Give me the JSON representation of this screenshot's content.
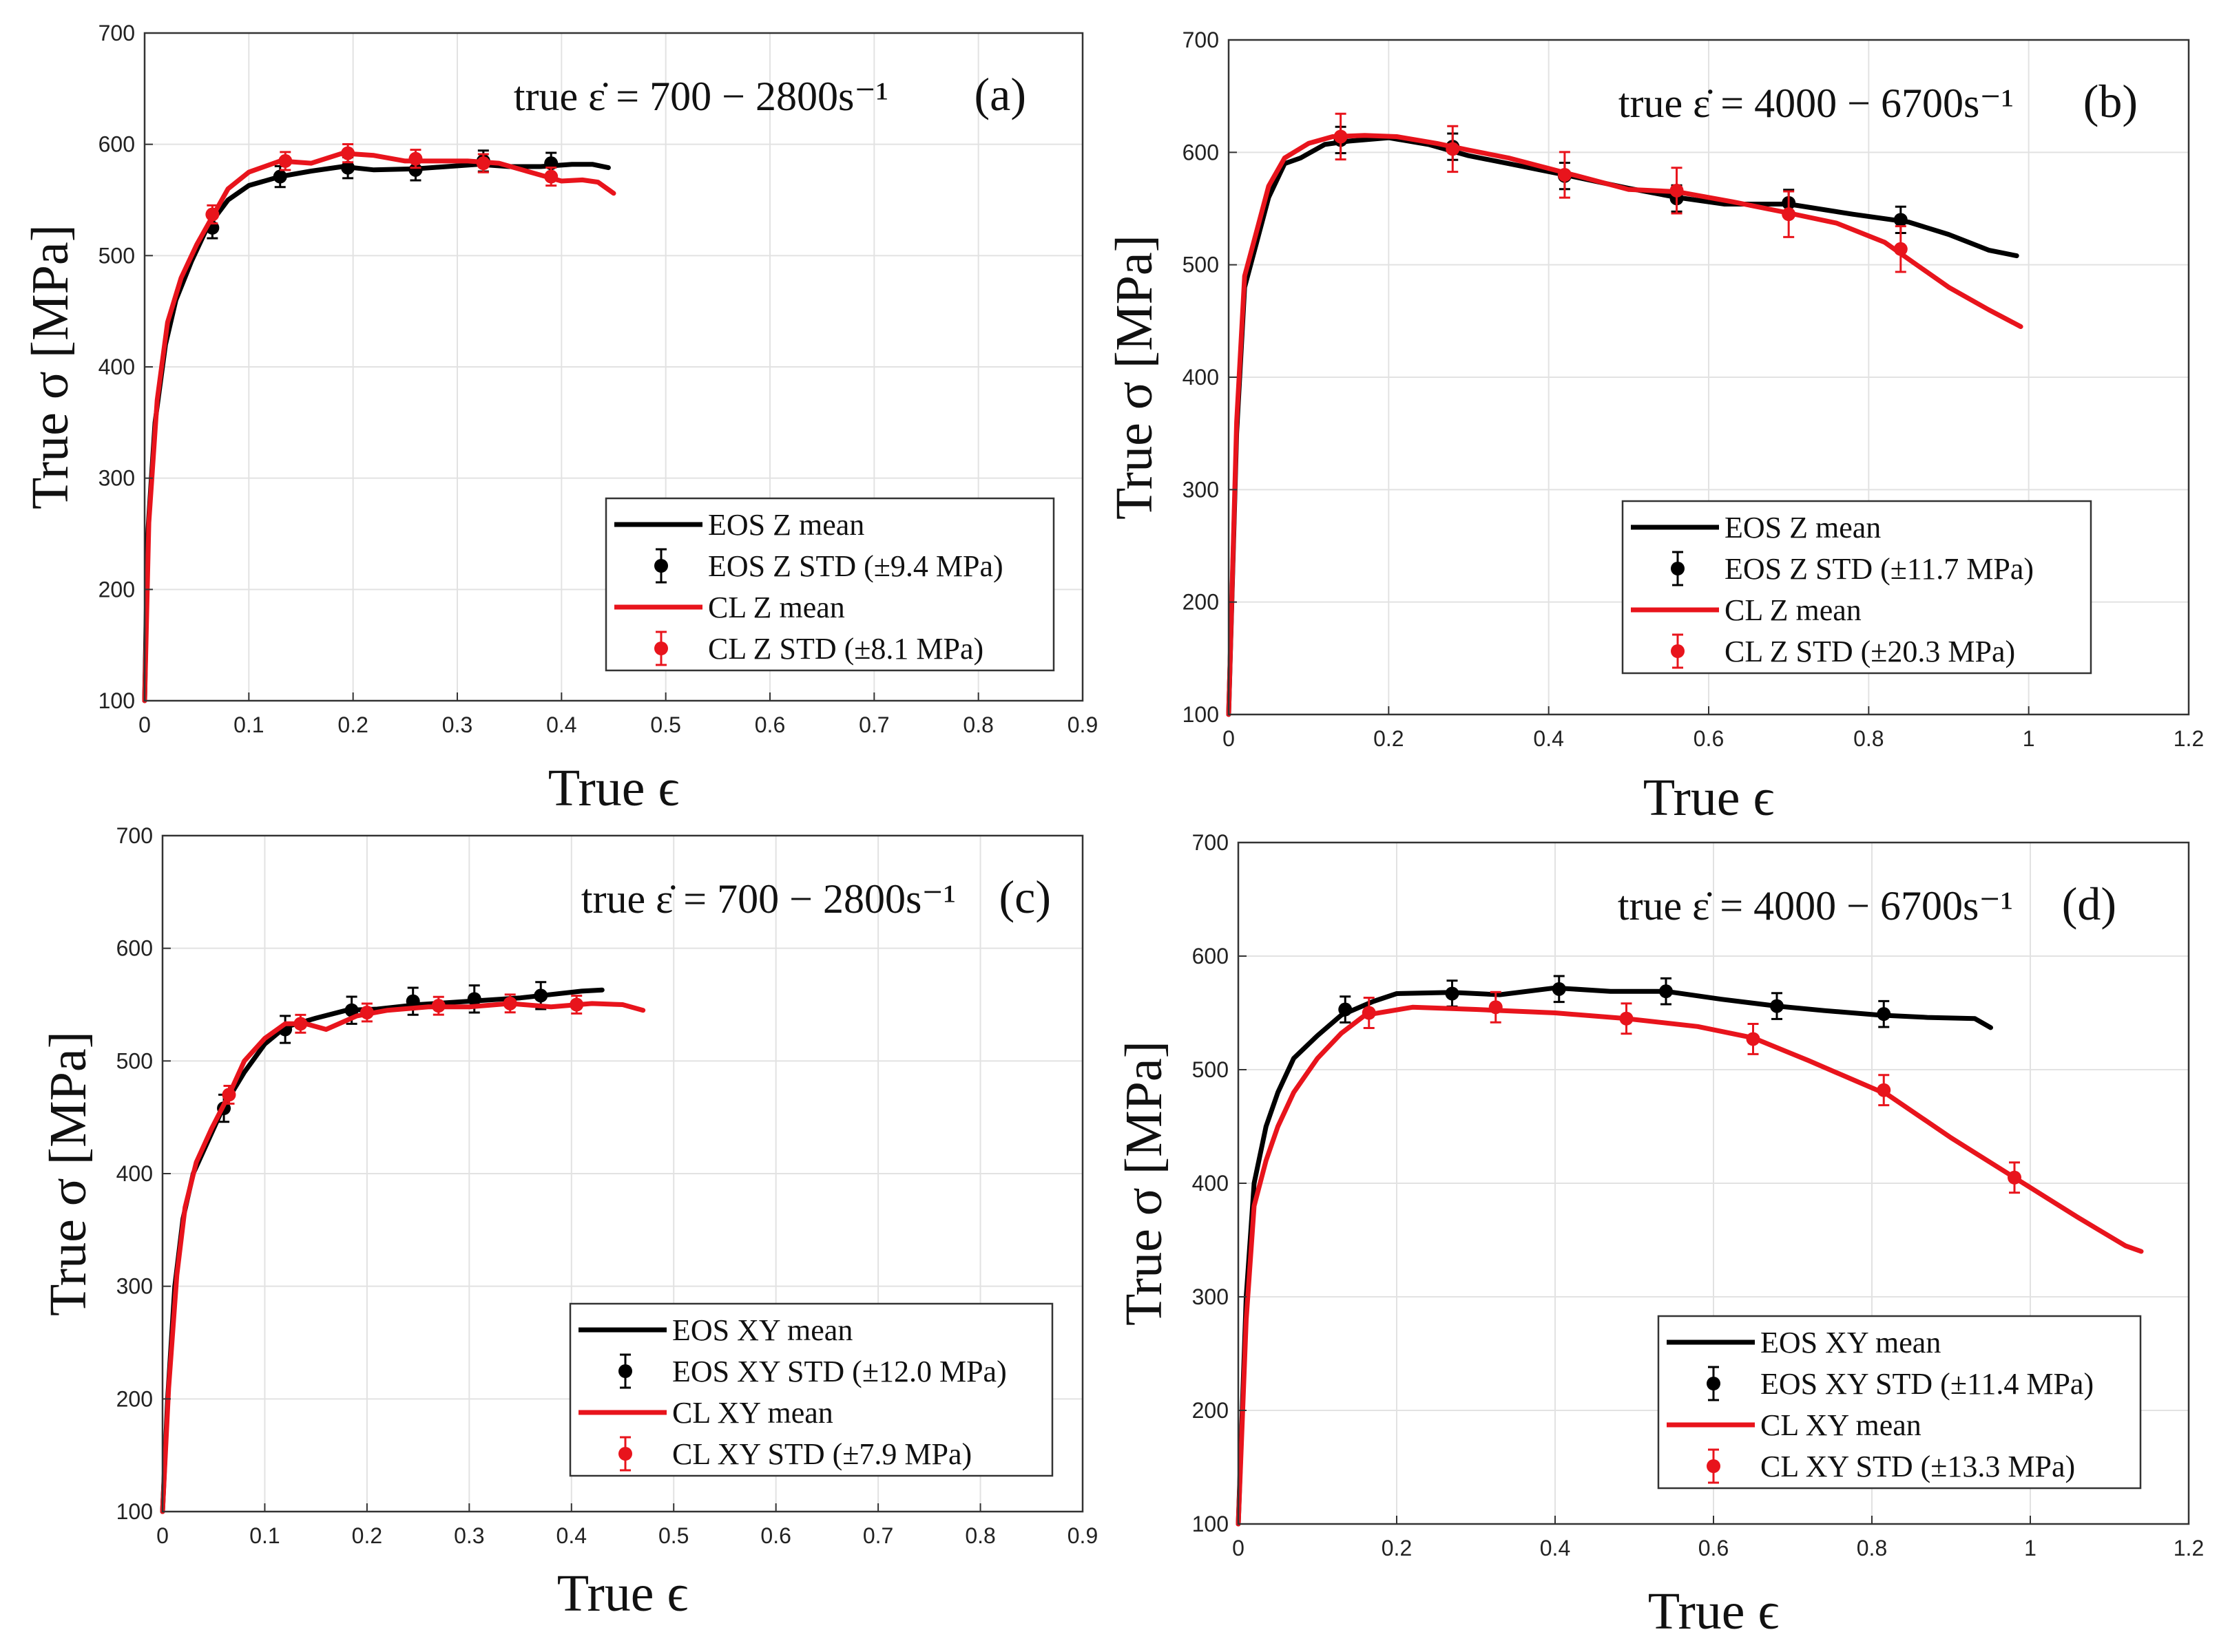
{
  "figure": {
    "colors": {
      "eos": "#000000",
      "cl": "#e8141c",
      "grid": "#e2e2e2"
    }
  },
  "chart_data": [
    {
      "panel": "(a)",
      "type": "line",
      "rate_text": "true ε̇ = 700 − 2800s⁻¹",
      "xlabel": "True ϵ",
      "ylabel": "True σ [MPa]",
      "xlim": [
        0,
        0.9
      ],
      "ylim": [
        100,
        700
      ],
      "xticks": [
        "0",
        "0.1",
        "0.2",
        "0.3",
        "0.4",
        "0.5",
        "0.6",
        "0.7",
        "0.8",
        "0.9"
      ],
      "yticks": [
        "100",
        "200",
        "300",
        "400",
        "500",
        "600",
        "700"
      ],
      "legend": [
        "EOS Z mean",
        "EOS Z STD (±9.4 MPa)",
        "CL Z mean",
        "CL Z STD (±8.1 MPa)"
      ],
      "series": [
        {
          "name": "EOS Z mean",
          "color": "eos",
          "x": [
            0,
            0.003,
            0.01,
            0.02,
            0.03,
            0.045,
            0.06,
            0.08,
            0.1,
            0.13,
            0.16,
            0.19,
            0.22,
            0.26,
            0.29,
            0.32,
            0.35,
            0.38,
            0.41,
            0.43,
            0.445
          ],
          "y": [
            100,
            250,
            350,
            420,
            460,
            495,
            525,
            550,
            563,
            571,
            576,
            580,
            577,
            578,
            580,
            582,
            580,
            580,
            582,
            582,
            579
          ],
          "err_x": [
            0.065,
            0.13,
            0.195,
            0.26,
            0.325,
            0.39
          ],
          "err_y": [
            525,
            571,
            579,
            577,
            585,
            583
          ],
          "err": 9.4
        },
        {
          "name": "CL Z mean",
          "color": "cl",
          "x": [
            0,
            0.004,
            0.012,
            0.022,
            0.035,
            0.05,
            0.065,
            0.08,
            0.1,
            0.13,
            0.16,
            0.19,
            0.22,
            0.25,
            0.28,
            0.31,
            0.34,
            0.37,
            0.4,
            0.42,
            0.435,
            0.45
          ],
          "y": [
            100,
            260,
            370,
            440,
            480,
            510,
            535,
            560,
            575,
            585,
            583,
            592,
            590,
            585,
            585,
            585,
            583,
            575,
            567,
            568,
            566,
            556
          ],
          "err_x": [
            0.065,
            0.135,
            0.195,
            0.26,
            0.325,
            0.39
          ],
          "err_y": [
            537,
            585,
            592,
            587,
            583,
            571
          ],
          "err": 8.1
        }
      ]
    },
    {
      "panel": "(b)",
      "type": "line",
      "rate_text": "true ε̇ = 4000 − 6700s⁻¹",
      "xlabel": "True ϵ",
      "ylabel": "True σ [MPa]",
      "xlim": [
        0,
        1.2
      ],
      "ylim": [
        100,
        700
      ],
      "xticks": [
        "0",
        "0.2",
        "0.4",
        "0.6",
        "0.8",
        "1",
        "1.2"
      ],
      "yticks": [
        "100",
        "200",
        "300",
        "400",
        "500",
        "600",
        "700"
      ],
      "legend": [
        "EOS Z mean",
        "EOS Z STD (±11.7 MPa)",
        "CL Z mean",
        "CL Z STD (±20.3 MPa)"
      ],
      "series": [
        {
          "name": "EOS Z mean",
          "color": "eos",
          "x": [
            0,
            0.01,
            0.02,
            0.035,
            0.05,
            0.07,
            0.09,
            0.12,
            0.15,
            0.2,
            0.25,
            0.3,
            0.35,
            0.42,
            0.5,
            0.56,
            0.62,
            0.7,
            0.78,
            0.85,
            0.9,
            0.95,
            0.985
          ],
          "y": [
            100,
            350,
            480,
            520,
            560,
            590,
            595,
            607,
            610,
            613,
            607,
            597,
            590,
            580,
            568,
            560,
            554,
            554,
            545,
            538,
            527,
            513,
            508
          ],
          "err_x": [
            0.14,
            0.28,
            0.42,
            0.56,
            0.7,
            0.84
          ],
          "err_y": [
            611,
            605,
            579,
            559,
            555,
            540
          ],
          "err": 11.7
        },
        {
          "name": "CL Z mean",
          "color": "cl",
          "x": [
            0,
            0.01,
            0.02,
            0.035,
            0.05,
            0.07,
            0.1,
            0.13,
            0.17,
            0.21,
            0.26,
            0.3,
            0.35,
            0.42,
            0.5,
            0.56,
            0.63,
            0.7,
            0.76,
            0.82,
            0.86,
            0.9,
            0.95,
            0.99
          ],
          "y": [
            100,
            360,
            490,
            530,
            570,
            595,
            608,
            614,
            615,
            614,
            608,
            602,
            595,
            582,
            567,
            565,
            556,
            546,
            537,
            520,
            500,
            480,
            460,
            445
          ],
          "err_x": [
            0.14,
            0.28,
            0.42,
            0.56,
            0.7,
            0.84
          ],
          "err_y": [
            614,
            603,
            580,
            566,
            545,
            514
          ],
          "err": 20.3
        }
      ]
    },
    {
      "panel": "(c)",
      "type": "line",
      "rate_text": "true ε̇ = 700 − 2800s⁻¹",
      "xlabel": "True ϵ",
      "ylabel": "True σ [MPa]",
      "xlim": [
        0,
        0.9
      ],
      "ylim": [
        100,
        700
      ],
      "xticks": [
        "0",
        "0.1",
        "0.2",
        "0.3",
        "0.4",
        "0.5",
        "0.6",
        "0.7",
        "0.8",
        "0.9"
      ],
      "yticks": [
        "100",
        "200",
        "300",
        "400",
        "500",
        "600",
        "700"
      ],
      "legend": [
        "EOS XY mean",
        "EOS XY STD (±12.0 MPa)",
        "CL XY mean",
        "CL XY STD (±7.9 MPa)"
      ],
      "series": [
        {
          "name": "EOS XY mean",
          "color": "eos",
          "x": [
            0,
            0.005,
            0.012,
            0.02,
            0.03,
            0.045,
            0.06,
            0.08,
            0.1,
            0.12,
            0.15,
            0.18,
            0.21,
            0.25,
            0.3,
            0.35,
            0.38,
            0.41,
            0.43
          ],
          "y": [
            100,
            200,
            300,
            360,
            400,
            430,
            460,
            490,
            515,
            530,
            538,
            545,
            546,
            550,
            553,
            556,
            559,
            562,
            563
          ],
          "err_x": [
            0.06,
            0.12,
            0.185,
            0.245,
            0.305,
            0.37
          ],
          "err_y": [
            458,
            528,
            545,
            553,
            555,
            558
          ],
          "err": 12.0
        },
        {
          "name": "CL XY mean",
          "color": "cl",
          "x": [
            0,
            0.006,
            0.014,
            0.022,
            0.033,
            0.048,
            0.065,
            0.08,
            0.1,
            0.12,
            0.14,
            0.16,
            0.19,
            0.22,
            0.26,
            0.3,
            0.34,
            0.38,
            0.42,
            0.45,
            0.47
          ],
          "y": [
            100,
            210,
            310,
            370,
            410,
            440,
            470,
            500,
            520,
            533,
            533,
            528,
            540,
            545,
            548,
            548,
            551,
            548,
            551,
            550,
            545
          ],
          "err_x": [
            0.065,
            0.135,
            0.2,
            0.27,
            0.34,
            0.405
          ],
          "err_y": [
            470,
            533,
            543,
            549,
            551,
            550
          ],
          "err": 7.9
        }
      ]
    },
    {
      "panel": "(d)",
      "type": "line",
      "rate_text": "true ε̇ = 4000 − 6700s⁻¹",
      "xlabel": "True ϵ",
      "ylabel": "True σ [MPa]",
      "xlim": [
        0,
        1.2
      ],
      "ylim": [
        100,
        700
      ],
      "xticks": [
        "0",
        "0.2",
        "0.4",
        "0.6",
        "0.8",
        "1",
        "1.2"
      ],
      "yticks": [
        "100",
        "200",
        "300",
        "400",
        "500",
        "600",
        "700"
      ],
      "legend": [
        "EOS XY mean",
        "EOS XY STD (±11.4 MPa)",
        "CL XY mean",
        "CL XY STD (±13.3 MPa)"
      ],
      "series": [
        {
          "name": "EOS XY mean",
          "color": "eos",
          "x": [
            0,
            0.01,
            0.02,
            0.035,
            0.05,
            0.07,
            0.1,
            0.13,
            0.17,
            0.2,
            0.27,
            0.33,
            0.4,
            0.47,
            0.54,
            0.61,
            0.68,
            0.74,
            0.81,
            0.87,
            0.93,
            0.95
          ],
          "y": [
            100,
            300,
            400,
            450,
            480,
            510,
            530,
            548,
            560,
            567,
            568,
            566,
            572,
            569,
            569,
            562,
            556,
            552,
            548,
            546,
            545,
            537
          ],
          "err_x": [
            0.135,
            0.27,
            0.405,
            0.54,
            0.68,
            0.815
          ],
          "err_y": [
            553,
            567,
            571,
            569,
            556,
            549
          ],
          "err": 11.4
        },
        {
          "name": "CL XY mean",
          "color": "cl",
          "x": [
            0,
            0.01,
            0.02,
            0.035,
            0.05,
            0.07,
            0.1,
            0.13,
            0.16,
            0.22,
            0.3,
            0.4,
            0.49,
            0.58,
            0.65,
            0.72,
            0.78,
            0.82,
            0.9,
            0.98,
            1.06,
            1.12,
            1.14
          ],
          "y": [
            100,
            280,
            380,
            420,
            450,
            480,
            510,
            532,
            548,
            555,
            553,
            550,
            545,
            538,
            528,
            508,
            490,
            478,
            440,
            405,
            370,
            345,
            340
          ],
          "err_x": [
            0.165,
            0.325,
            0.49,
            0.65,
            0.815,
            0.98
          ],
          "err_y": [
            550,
            555,
            545,
            527,
            482,
            405
          ],
          "err": 13.3
        }
      ]
    }
  ]
}
